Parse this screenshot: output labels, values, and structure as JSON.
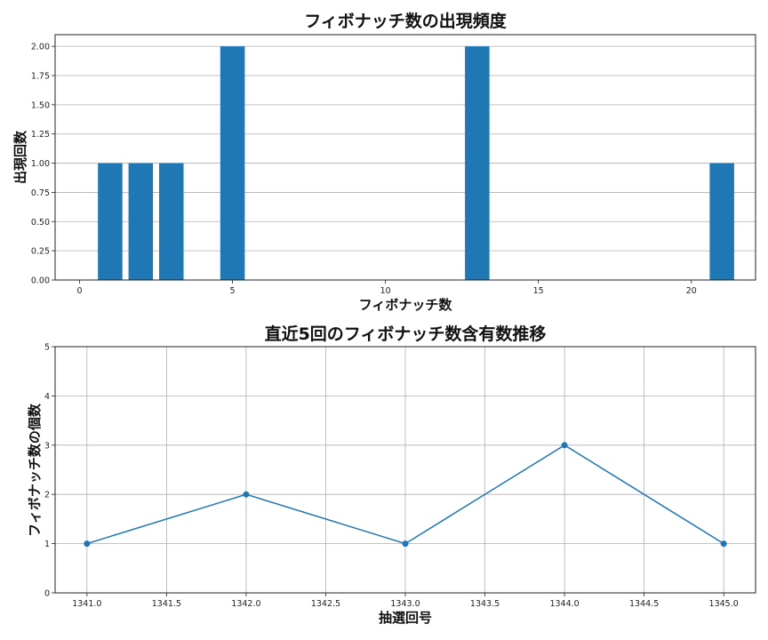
{
  "chart_data": [
    {
      "type": "bar",
      "title": "フィボナッチ数の出現頻度",
      "xlabel": "フィボナッチ数",
      "ylabel": "出現回数",
      "x": [
        1,
        2,
        3,
        5,
        13,
        21
      ],
      "values": [
        1,
        1,
        1,
        2,
        2,
        1
      ],
      "xlim": [
        -0.8,
        22.1
      ],
      "ylim": [
        0,
        2.1
      ],
      "xticks": [
        0,
        5,
        10,
        15,
        20
      ],
      "yticks": [
        0.0,
        0.25,
        0.5,
        0.75,
        1.0,
        1.25,
        1.5,
        1.75,
        2.0
      ],
      "grid": "y",
      "color": "#1f77b4"
    },
    {
      "type": "line",
      "title": "直近5回のフィボナッチ数含有数推移",
      "xlabel": "抽選回号",
      "ylabel": "フィボナッチ数の個数",
      "x": [
        1341,
        1342,
        1343,
        1344,
        1345
      ],
      "values": [
        1,
        2,
        1,
        3,
        1
      ],
      "xlim": [
        1340.8,
        1345.2
      ],
      "ylim": [
        0,
        5
      ],
      "xticks": [
        1341.0,
        1341.5,
        1342.0,
        1342.5,
        1343.0,
        1343.5,
        1344.0,
        1344.5,
        1345.0
      ],
      "yticks": [
        0,
        1,
        2,
        3,
        4,
        5
      ],
      "grid": "both",
      "marker": "circle",
      "color": "#1f77b4"
    }
  ]
}
